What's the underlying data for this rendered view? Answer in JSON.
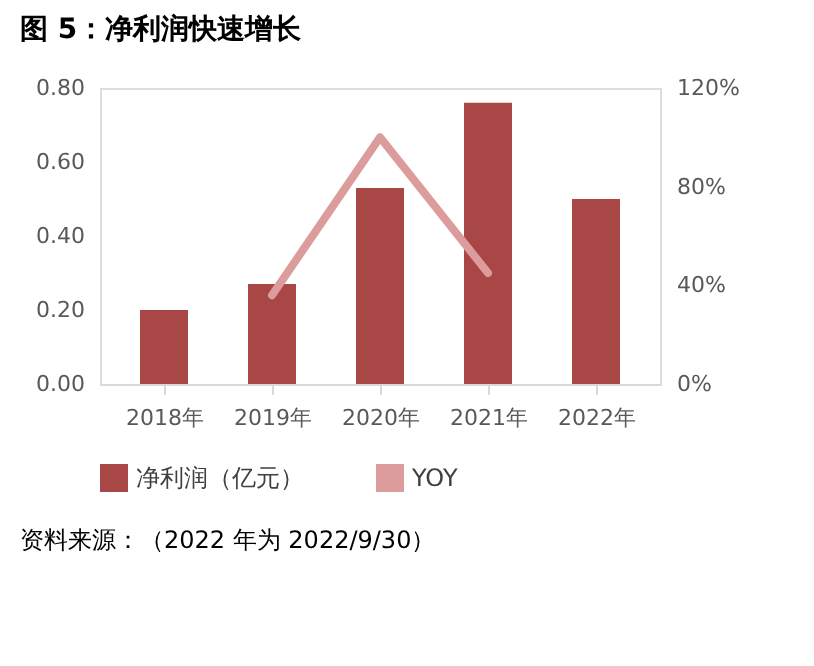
{
  "chart_data": {
    "type": "bar",
    "title": "图 5：净利润快速增长",
    "categories": [
      "2018年",
      "2019年",
      "2020年",
      "2021年",
      "2022年"
    ],
    "series": [
      {
        "name": "净利润（亿元）",
        "color": "#a94646",
        "values": [
          0.2,
          0.27,
          0.53,
          0.76,
          0.5
        ]
      },
      {
        "name": "YOY",
        "type": "line",
        "axis": "y2",
        "color": "#dc9c9c",
        "values": [
          null,
          36,
          100,
          45,
          null
        ]
      }
    ],
    "ylim": [
      0,
      0.8
    ],
    "yticks": [
      {
        "value": 0,
        "label": "0.00"
      },
      {
        "value": 0.2,
        "label": "0.20"
      },
      {
        "value": 0.4,
        "label": "0.40"
      },
      {
        "value": 0.6,
        "label": "0.60"
      },
      {
        "value": 0.8,
        "label": "0.80"
      }
    ],
    "y2lim": [
      0,
      120
    ],
    "y2ticks": [
      {
        "value": 0,
        "label": "0%"
      },
      {
        "value": 40,
        "label": "40%"
      },
      {
        "value": 80,
        "label": "80%"
      },
      {
        "value": 120,
        "label": "120%"
      }
    ],
    "grid": false,
    "legend": "bottom",
    "annotations": [
      "资料来源：（2022 年为 2022/9/30）"
    ]
  }
}
